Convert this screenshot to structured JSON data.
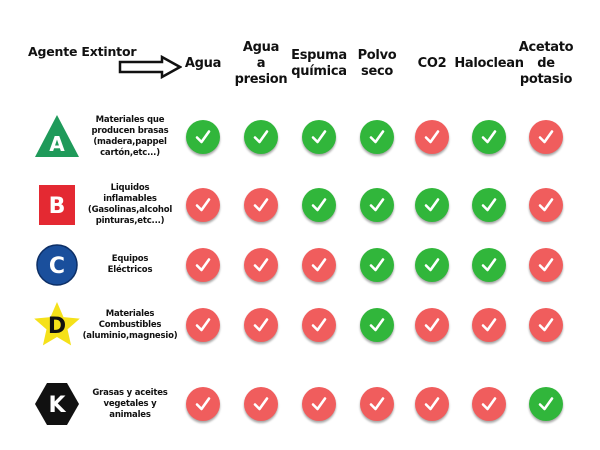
{
  "header": {
    "label": "Agente Extintor"
  },
  "columns": [
    {
      "id": "agua",
      "lines": [
        "Agua"
      ]
    },
    {
      "id": "agua-presion",
      "lines": [
        "Agua",
        "a",
        "presion"
      ]
    },
    {
      "id": "espuma",
      "lines": [
        "Espuma",
        "química"
      ]
    },
    {
      "id": "polvo",
      "lines": [
        "Polvo",
        "seco"
      ]
    },
    {
      "id": "co2",
      "lines": [
        "CO2"
      ]
    },
    {
      "id": "haloclean",
      "lines": [
        "Haloclean"
      ]
    },
    {
      "id": "acetato",
      "lines": [
        "Acetato",
        "de",
        "potasio"
      ]
    }
  ],
  "rows": [
    {
      "id": "a",
      "letter": "A",
      "shape": "triangle",
      "color": "#1f9a5a",
      "lines": [
        "Materiales que",
        "producen brasas",
        "(madera,pappel",
        "cartón,etc...)"
      ],
      "values": [
        true,
        true,
        true,
        true,
        false,
        true,
        false
      ]
    },
    {
      "id": "b",
      "letter": "B",
      "shape": "square",
      "color": "#e42932",
      "lines": [
        "Liquidos",
        "inflamables",
        "(Gasolinas,alcohol",
        "pinturas,etc...)"
      ],
      "values": [
        false,
        false,
        true,
        true,
        true,
        true,
        false
      ]
    },
    {
      "id": "c",
      "letter": "C",
      "shape": "circle",
      "color": "#1a4f9c",
      "lines": [
        "Equipos",
        "Eléctricos"
      ],
      "values": [
        false,
        false,
        false,
        true,
        true,
        true,
        false
      ]
    },
    {
      "id": "d",
      "letter": "D",
      "shape": "star",
      "color": "#f5e11a",
      "lines": [
        "Materiales",
        "Combustibles",
        "(aluminio,magnesio)"
      ],
      "values": [
        false,
        false,
        false,
        true,
        false,
        false,
        false
      ]
    },
    {
      "id": "k",
      "letter": "K",
      "shape": "hexagon",
      "color": "#111111",
      "lines": [
        "Grasas y aceites",
        "vegetales y",
        "animales"
      ],
      "values": [
        false,
        false,
        false,
        false,
        false,
        false,
        true
      ]
    }
  ],
  "colors": {
    "yes": "#31b63b",
    "no": "#f05d5d",
    "check": "#ffffff"
  }
}
